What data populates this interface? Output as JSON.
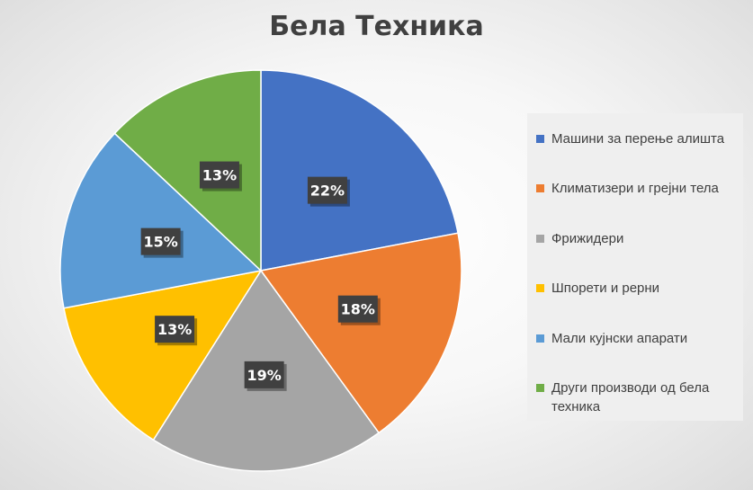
{
  "chart_data": {
    "type": "pie",
    "title": "Бела Техника",
    "categories": [
      "Машини за перење алишта",
      "Климатизери и грејни тела",
      "Фрижидери",
      "Шпорети и рерни",
      "Мали кујнски апарати",
      "Други производи од бела техника"
    ],
    "values": [
      22,
      18,
      19,
      13,
      15,
      13
    ],
    "labels": [
      "22%",
      "18%",
      "19%",
      "13%",
      "15%",
      "13%"
    ],
    "colors": [
      "#4472C4",
      "#ED7D31",
      "#A5A5A5",
      "#FFC000",
      "#5B9BD5",
      "#70AD47"
    ],
    "legend_position": "right"
  }
}
